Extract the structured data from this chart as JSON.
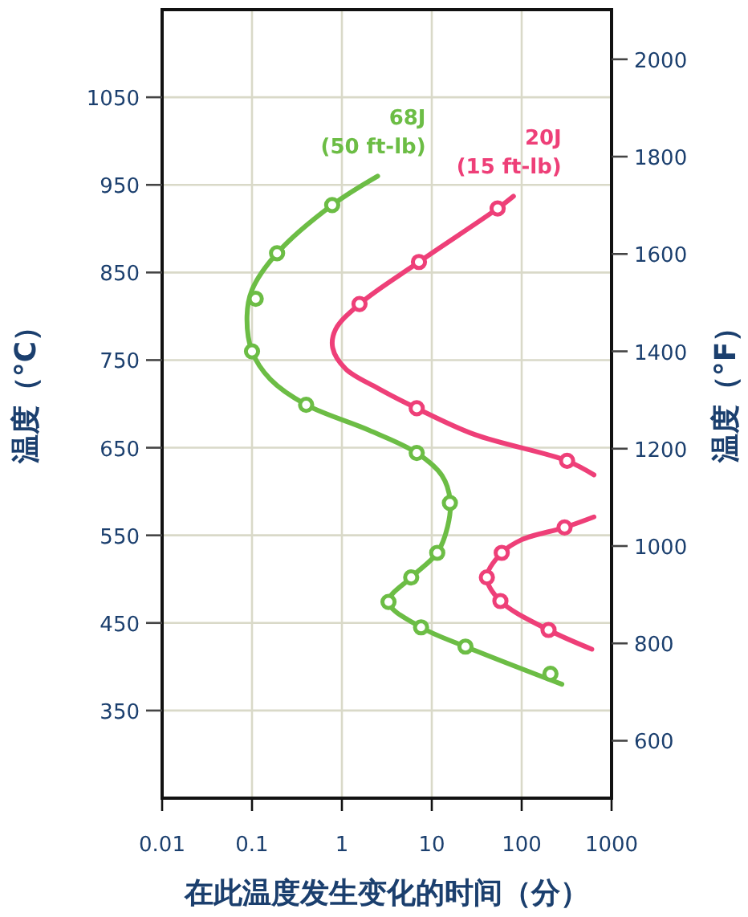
{
  "chart_data": {
    "type": "line",
    "xlabel": "在此温度发生变化的时间（分）",
    "ylabel": "温度（°C）",
    "y2label": "温度（°F）",
    "log": "x",
    "grid": true,
    "xlim": [
      0.01,
      1000
    ],
    "xticks": [
      0.01,
      0.1,
      1,
      10,
      100,
      1000
    ],
    "ylim": [
      250,
      1150
    ],
    "yticks": [
      350,
      450,
      550,
      650,
      750,
      850,
      950,
      1050
    ],
    "y2lim": [
      482,
      2102
    ],
    "y2ticks": [
      600,
      800,
      1000,
      1200,
      1400,
      1600,
      1800,
      2000
    ],
    "series": [
      {
        "name": "68J (50 ft-lb)",
        "color": "#6cbd45",
        "marker": "none",
        "x": [
          2.5,
          0.78,
          0.19,
          0.1,
          0.088,
          0.1,
          0.16,
          0.4,
          2,
          6.8,
          13,
          16,
          15,
          11.5,
          5.9,
          3.3,
          7.6,
          23.7,
          280
        ],
        "values": [
          960,
          927,
          872,
          830,
          800,
          760,
          728,
          699,
          670,
          644,
          618,
          590,
          560,
          530,
          502,
          474,
          445,
          423,
          380
        ]
      },
      {
        "name": "20J (15 ft-lb)",
        "color": "#ee3f78",
        "marker": "none",
        "x": [
          81,
          54,
          7.2,
          1.57,
          0.85,
          0.79,
          1.1,
          2.5,
          6.8,
          30,
          320,
          637
        ],
        "values": [
          937,
          923,
          862,
          814,
          785,
          764,
          740,
          718,
          695,
          665,
          635,
          619
        ]
      },
      {
        "color": "#ee3f78",
        "marker": "none",
        "x": [
          637,
          300,
          100,
          60,
          41,
          58,
          199,
          603
        ],
        "values": [
          571,
          559,
          545,
          530,
          502,
          475,
          442,
          420
        ]
      },
      {
        "type": "scatter",
        "color": "#6cbd45",
        "marker": "circle",
        "x": [
          0.78,
          0.19,
          0.11,
          0.1,
          0.4,
          6.8,
          15.9,
          11.5,
          5.9,
          3.3,
          7.6,
          23.7,
          209
        ],
        "values": [
          927,
          872,
          820,
          760,
          699,
          644,
          587,
          530,
          502,
          474,
          445,
          423,
          392
        ]
      },
      {
        "type": "scatter",
        "color": "#ee3f78",
        "marker": "circle",
        "x": [
          54,
          7.2,
          1.57,
          6.8,
          320,
          300,
          60,
          41,
          58,
          199
        ],
        "values": [
          923,
          862,
          814,
          695,
          635,
          559,
          530,
          502,
          475,
          442
        ]
      }
    ]
  }
}
